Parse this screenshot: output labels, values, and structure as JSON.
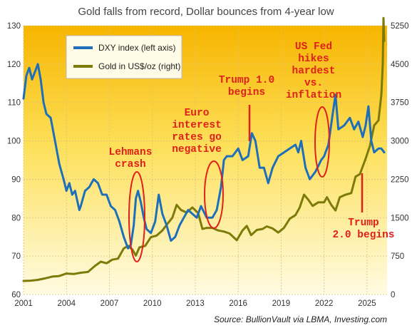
{
  "chart_data": {
    "type": "line",
    "title": "Gold falls from record, Dollar bounces from 4-year low",
    "source": "Source: BullionVault via LBMA, Investing.com",
    "x_ticks": [
      "2001",
      "2004",
      "2007",
      "2010",
      "2013",
      "2016",
      "2019",
      "2022",
      "2025"
    ],
    "y_left_ticks": [
      "60",
      "70",
      "80",
      "90",
      "100",
      "110",
      "120",
      "130"
    ],
    "y_right_ticks": [
      "0",
      "750",
      "1500",
      "2250",
      "3000",
      "3750",
      "4500",
      "5250"
    ],
    "y_left_lim": [
      60,
      130
    ],
    "y_right_lim": [
      0,
      5250
    ],
    "x_lim": [
      2001,
      2026.4
    ],
    "grid": true,
    "legend_position": "top-left",
    "colors": {
      "dxy": "#1e6fba",
      "gold": "#7c7a08",
      "annotation": "#e0201b",
      "bg_top": "#f7b500",
      "bg_bottom": "#fffbe2"
    },
    "series": [
      {
        "name": "DXY index (left axis)",
        "axis": "left",
        "x": [
          2001.0,
          2001.2,
          2001.4,
          2001.6,
          2001.8,
          2002.0,
          2002.2,
          2002.4,
          2002.6,
          2002.9,
          2003.2,
          2003.5,
          2003.8,
          2004.0,
          2004.2,
          2004.4,
          2004.6,
          2004.9,
          2005.0,
          2005.3,
          2005.6,
          2005.9,
          2006.2,
          2006.5,
          2006.8,
          2007.1,
          2007.4,
          2007.7,
          2008.0,
          2008.3,
          2008.5,
          2008.7,
          2008.85,
          2009.0,
          2009.2,
          2009.4,
          2009.6,
          2009.9,
          2010.2,
          2010.45,
          2010.7,
          2011.0,
          2011.3,
          2011.6,
          2011.9,
          2012.2,
          2012.5,
          2012.8,
          2013.1,
          2013.4,
          2013.8,
          2014.2,
          2014.5,
          2014.8,
          2015.0,
          2015.2,
          2015.6,
          2016.0,
          2016.3,
          2016.7,
          2016.95,
          2017.2,
          2017.5,
          2017.8,
          2018.1,
          2018.4,
          2018.8,
          2019.2,
          2019.6,
          2020.0,
          2020.2,
          2020.4,
          2020.7,
          2021.0,
          2021.4,
          2021.8,
          2022.0,
          2022.3,
          2022.6,
          2022.8,
          2023.0,
          2023.4,
          2023.8,
          2024.1,
          2024.4,
          2024.7,
          2024.9,
          2025.1,
          2025.3,
          2025.5,
          2025.8,
          2026.0,
          2026.2
        ],
        "values": [
          111,
          117,
          119,
          116,
          118,
          120,
          116,
          110,
          107,
          106,
          100,
          94,
          90,
          87,
          89,
          86,
          87,
          82,
          83,
          87,
          88,
          90,
          89,
          86,
          86,
          83,
          82,
          79,
          75,
          72,
          73,
          78,
          85,
          87,
          84,
          80,
          77,
          76,
          79,
          86,
          81,
          78,
          74,
          75,
          78,
          80,
          82,
          81,
          80,
          83,
          80,
          80,
          82,
          88,
          95,
          96,
          96,
          98,
          95,
          96,
          102,
          100,
          93,
          93,
          89,
          93,
          96,
          97,
          98,
          99,
          97,
          100,
          93,
          90,
          92,
          95,
          96,
          99,
          107,
          112,
          103,
          104,
          106,
          103,
          105,
          101,
          104,
          109,
          100,
          97,
          98,
          98,
          97
        ]
      },
      {
        "name": "Gold in US$/oz (right)",
        "axis": "right",
        "x": [
          2001.0,
          2001.5,
          2002.0,
          2002.5,
          2003.0,
          2003.5,
          2004.0,
          2004.5,
          2005.0,
          2005.5,
          2006.0,
          2006.4,
          2006.8,
          2007.2,
          2007.6,
          2008.0,
          2008.3,
          2008.6,
          2008.85,
          2009.1,
          2009.5,
          2009.9,
          2010.3,
          2010.7,
          2011.0,
          2011.4,
          2011.7,
          2012.0,
          2012.4,
          2012.8,
          2013.2,
          2013.5,
          2013.8,
          2014.2,
          2014.6,
          2015.0,
          2015.4,
          2015.9,
          2016.3,
          2016.6,
          2016.9,
          2017.3,
          2017.7,
          2018.0,
          2018.4,
          2018.8,
          2019.2,
          2019.6,
          2020.0,
          2020.3,
          2020.6,
          2020.9,
          2021.2,
          2021.6,
          2022.0,
          2022.2,
          2022.5,
          2022.8,
          2023.1,
          2023.5,
          2023.9,
          2024.2,
          2024.5,
          2024.9,
          2025.2,
          2025.5,
          2025.8,
          2026.0,
          2026.1,
          2026.15,
          2026.2
        ],
        "values": [
          265,
          270,
          285,
          315,
          350,
          360,
          410,
          400,
          425,
          440,
          560,
          640,
          610,
          680,
          700,
          900,
          950,
          880,
          760,
          920,
          950,
          1120,
          1150,
          1250,
          1360,
          1500,
          1750,
          1650,
          1600,
          1700,
          1590,
          1280,
          1300,
          1300,
          1250,
          1230,
          1190,
          1060,
          1250,
          1340,
          1160,
          1260,
          1280,
          1330,
          1290,
          1210,
          1300,
          1480,
          1550,
          1700,
          1950,
          1850,
          1730,
          1800,
          1800,
          1900,
          1750,
          1640,
          1900,
          1950,
          1980,
          2300,
          2350,
          2650,
          2900,
          3300,
          3400,
          3900,
          4500,
          5400,
          4950
        ]
      }
    ],
    "annotations": [
      {
        "id": "lehmans",
        "lines": [
          "Lehmans",
          "crash"
        ]
      },
      {
        "id": "euro",
        "lines": [
          "Euro",
          "interest",
          "rates go",
          "negative"
        ]
      },
      {
        "id": "trump1",
        "lines": [
          "Trump 1.0",
          "begins"
        ]
      },
      {
        "id": "fed",
        "lines": [
          "US Fed",
          "hikes",
          "hardest",
          "vs.",
          "inflation"
        ]
      },
      {
        "id": "trump2",
        "lines": [
          "Trump",
          "2.0 begins"
        ]
      }
    ]
  }
}
